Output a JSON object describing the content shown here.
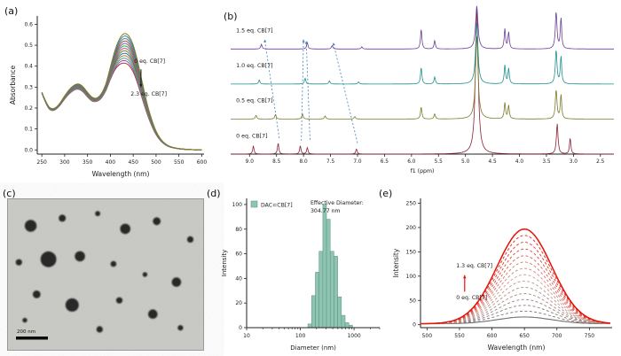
{
  "panels": {
    "a": {
      "label": "(a)"
    },
    "b": {
      "label": "(b)"
    },
    "c": {
      "label": "(c)"
    },
    "d": {
      "label": "(d)"
    },
    "e": {
      "label": "(e)"
    }
  },
  "chart_data": [
    {
      "id": "a",
      "type": "line",
      "xlabel": "Wavelength (nm)",
      "ylabel": "Absorbance",
      "xlim": [
        240,
        605
      ],
      "ylim": [
        -0.02,
        0.64
      ],
      "xticks": [
        250,
        300,
        350,
        400,
        450,
        500,
        550,
        600
      ],
      "yticks": [
        0,
        0.1,
        0.2,
        0.3,
        0.4,
        0.5,
        0.6
      ],
      "x": [
        250,
        258,
        266,
        274,
        282,
        290,
        300,
        310,
        320,
        330,
        340,
        350,
        360,
        370,
        380,
        390,
        400,
        410,
        420,
        430,
        440,
        450,
        460,
        470,
        480,
        490,
        500,
        510,
        520,
        530,
        545,
        560,
        580,
        600
      ],
      "first": [
        0.275,
        0.235,
        0.205,
        0.197,
        0.205,
        0.225,
        0.258,
        0.288,
        0.308,
        0.315,
        0.302,
        0.275,
        0.252,
        0.248,
        0.268,
        0.315,
        0.395,
        0.475,
        0.53,
        0.555,
        0.545,
        0.5,
        0.42,
        0.32,
        0.225,
        0.148,
        0.09,
        0.052,
        0.03,
        0.017,
        0.008,
        0.004,
        0.001,
        0.0
      ],
      "last": [
        0.272,
        0.228,
        0.196,
        0.188,
        0.196,
        0.214,
        0.243,
        0.268,
        0.285,
        0.29,
        0.278,
        0.253,
        0.234,
        0.232,
        0.247,
        0.283,
        0.337,
        0.383,
        0.408,
        0.415,
        0.405,
        0.372,
        0.315,
        0.243,
        0.175,
        0.117,
        0.073,
        0.043,
        0.025,
        0.014,
        0.007,
        0.003,
        0.001,
        0.0
      ],
      "n_curves": 13,
      "colors": [
        "#8a7a1c",
        "#2e8b8b",
        "#4f7fc4",
        "#b2502e",
        "#7c5fa8",
        "#3a9e55",
        "#c44f6e",
        "#5b8f2e",
        "#2f6db2",
        "#b8862e",
        "#3fa39a",
        "#9a4fb2",
        "#b23737"
      ],
      "ann": {
        "label_start": "0 eq. CB[7]",
        "label_end": "2.3 eq. CB[7]",
        "x_text": 452,
        "y_start": 0.415,
        "y_end": 0.26,
        "arrow_x": 467,
        "arrow_y1": 0.385,
        "arrow_y2": 0.3
      }
    },
    {
      "id": "b",
      "type": "nmr",
      "xlabel": "f1 (ppm)",
      "xlim": [
        9.35,
        2.25
      ],
      "xticks": [
        9.0,
        8.5,
        8.0,
        7.5,
        7.0,
        6.5,
        6.0,
        5.5,
        5.0,
        4.5,
        4.0,
        3.5,
        3.0,
        2.5
      ],
      "ymax": 4.7,
      "arrow_color": "#3f7fbf",
      "arrows": [
        [
          8.45,
          0.5,
          8.72,
          3.6
        ],
        [
          8.04,
          0.42,
          8.0,
          3.6
        ],
        [
          7.88,
          0.45,
          7.95,
          3.55
        ],
        [
          7.0,
          0.35,
          7.45,
          3.5
        ]
      ],
      "traces": [
        {
          "label": "0 eq. CB[7]",
          "color": "#8d2036",
          "offset": 0,
          "peaks": [
            [
              8.93,
              0.25,
              0.015
            ],
            [
              8.47,
              0.34,
              0.015
            ],
            [
              8.06,
              0.26,
              0.015
            ],
            [
              7.93,
              0.2,
              0.015
            ],
            [
              7.02,
              0.16,
              0.015
            ],
            [
              4.79,
              4.6,
              0.03
            ],
            [
              3.3,
              0.95,
              0.018
            ],
            [
              3.06,
              0.5,
              0.015
            ]
          ]
        },
        {
          "label": "0.5 eq. CB[7]",
          "color": "#7b7b2a",
          "offset": 1.1,
          "peaks": [
            [
              8.88,
              0.12,
              0.015
            ],
            [
              8.52,
              0.14,
              0.015
            ],
            [
              8.02,
              0.16,
              0.015
            ],
            [
              7.6,
              0.1,
              0.015
            ],
            [
              7.05,
              0.08,
              0.015
            ],
            [
              5.82,
              0.38,
              0.015
            ],
            [
              5.57,
              0.16,
              0.015
            ],
            [
              4.79,
              2.6,
              0.028
            ],
            [
              4.27,
              0.5,
              0.015
            ],
            [
              4.2,
              0.42,
              0.015
            ],
            [
              3.32,
              0.9,
              0.018
            ],
            [
              3.23,
              0.75,
              0.015
            ]
          ]
        },
        {
          "label": "1.0 eq. CB[7]",
          "color": "#1f8f8f",
          "offset": 2.2,
          "peaks": [
            [
              8.82,
              0.13,
              0.015
            ],
            [
              7.97,
              0.18,
              0.015
            ],
            [
              7.52,
              0.1,
              0.015
            ],
            [
              6.98,
              0.07,
              0.015
            ],
            [
              5.82,
              0.52,
              0.015
            ],
            [
              5.57,
              0.22,
              0.015
            ],
            [
              4.79,
              1.9,
              0.026
            ],
            [
              4.27,
              0.58,
              0.015
            ],
            [
              4.2,
              0.48,
              0.015
            ],
            [
              3.32,
              1.05,
              0.018
            ],
            [
              3.23,
              0.85,
              0.015
            ]
          ]
        },
        {
          "label": "1.5 eq. CB[7]",
          "color": "#6a3d9a",
          "offset": 3.3,
          "peaks": [
            [
              8.78,
              0.15,
              0.015
            ],
            [
              7.93,
              0.2,
              0.015
            ],
            [
              7.47,
              0.11,
              0.015
            ],
            [
              6.92,
              0.07,
              0.015
            ],
            [
              5.82,
              0.62,
              0.015
            ],
            [
              5.57,
              0.26,
              0.015
            ],
            [
              4.79,
              1.35,
              0.026
            ],
            [
              4.27,
              0.62,
              0.015
            ],
            [
              4.2,
              0.52,
              0.015
            ],
            [
              3.32,
              1.15,
              0.018
            ],
            [
              3.23,
              0.95,
              0.015
            ]
          ]
        }
      ]
    },
    {
      "id": "c",
      "type": "tem",
      "bg": "#c9c9c5",
      "scalebar": "200 nm",
      "blobs": [
        [
          0.12,
          0.18,
          0.03
        ],
        [
          0.28,
          0.13,
          0.018
        ],
        [
          0.46,
          0.1,
          0.013
        ],
        [
          0.6,
          0.2,
          0.026
        ],
        [
          0.76,
          0.15,
          0.02
        ],
        [
          0.93,
          0.27,
          0.016
        ],
        [
          0.06,
          0.42,
          0.016
        ],
        [
          0.21,
          0.4,
          0.04
        ],
        [
          0.37,
          0.38,
          0.026
        ],
        [
          0.54,
          0.43,
          0.015
        ],
        [
          0.7,
          0.5,
          0.012
        ],
        [
          0.86,
          0.55,
          0.024
        ],
        [
          0.15,
          0.63,
          0.02
        ],
        [
          0.33,
          0.7,
          0.034
        ],
        [
          0.57,
          0.67,
          0.016
        ],
        [
          0.74,
          0.76,
          0.024
        ],
        [
          0.47,
          0.86,
          0.016
        ],
        [
          0.09,
          0.8,
          0.012
        ],
        [
          0.88,
          0.85,
          0.014
        ]
      ]
    },
    {
      "id": "d",
      "type": "bar",
      "xlabel": "Diameter (nm)",
      "ylabel": "Intensity",
      "legend": "DAC⊂CB[7]",
      "ann_line1": "Effective Diameter:",
      "ann_line2": "304.77 nm",
      "xlim": [
        10,
        3000
      ],
      "xticks": [
        10,
        100,
        1000
      ],
      "ylim": [
        0,
        105
      ],
      "yticks": [
        0,
        20,
        40,
        60,
        80,
        100
      ],
      "bar_color": "#8fc4b2",
      "bar_edge": "#649e8c",
      "bins": [
        [
          150,
          3
        ],
        [
          176,
          26
        ],
        [
          206,
          45
        ],
        [
          242,
          62
        ],
        [
          284,
          100
        ],
        [
          333,
          88
        ],
        [
          390,
          62
        ],
        [
          458,
          58
        ],
        [
          537,
          25
        ],
        [
          630,
          10
        ],
        [
          739,
          4
        ],
        [
          867,
          2
        ]
      ]
    },
    {
      "id": "e",
      "type": "line",
      "xlabel": "Wavelength (nm)",
      "ylabel": "Intensity",
      "xlim": [
        490,
        785
      ],
      "ylim": [
        -6,
        260
      ],
      "xticks": [
        500,
        550,
        600,
        650,
        700,
        750
      ],
      "yticks": [
        0,
        50,
        100,
        150,
        200,
        250
      ],
      "center": 650,
      "sigma": 42,
      "baseline": 2,
      "heights": [
        14,
        26,
        38,
        50,
        62,
        75,
        88,
        101,
        114,
        127,
        140,
        154,
        168,
        182,
        195
      ],
      "color_start": "#707070",
      "color_mid": "#cf9a92",
      "color_end": "#e51207",
      "ann_top": "1.3 eq. CB[7]",
      "ann_bottom": "0 eq. CB[7]",
      "ann_x": 545,
      "arrow_x": 558,
      "arrow_y1": 68,
      "arrow_y2": 102,
      "top_y": 118,
      "bottom_y": 52
    }
  ]
}
